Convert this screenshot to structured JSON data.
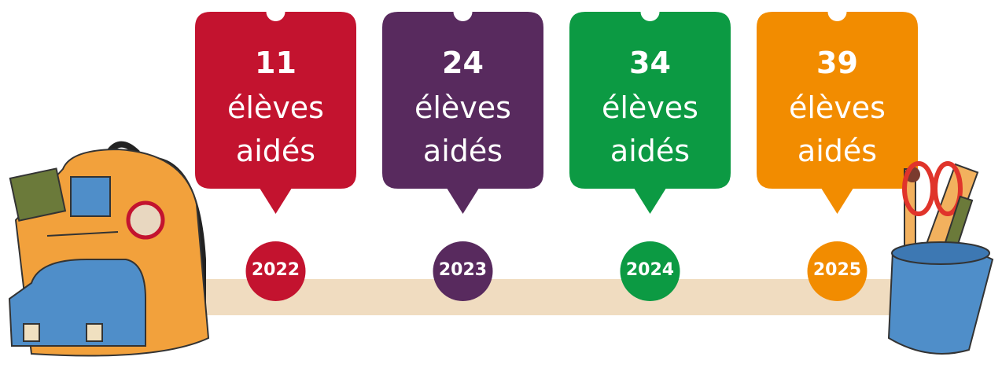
{
  "items": [
    {
      "count": 11,
      "label": "élèves aidés",
      "year": "2022",
      "color": "#c3132f"
    },
    {
      "count": 24,
      "label": "élèves aidés",
      "year": "2023",
      "color": "#582a5e"
    },
    {
      "count": 34,
      "label": "élèves aidés",
      "year": "2024",
      "color": "#0c9a43"
    },
    {
      "count": 39,
      "label": "élèves aidés",
      "year": "2025",
      "color": "#f28c00"
    }
  ]
}
